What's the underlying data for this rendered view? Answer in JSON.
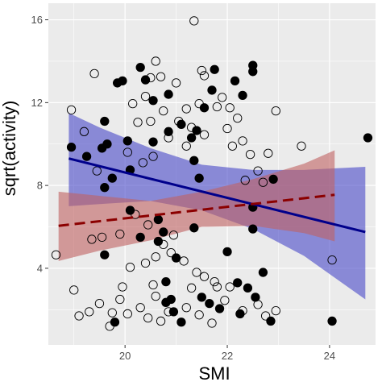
{
  "chart_data": {
    "type": "scatter",
    "xlabel": "SMI",
    "ylabel": "sqrt(activity)",
    "xlim": [
      18.5,
      24.9
    ],
    "ylim": [
      0.3,
      16.8
    ],
    "x_ticks": [
      20,
      22,
      24
    ],
    "x_tick_labels": [
      "20",
      "22",
      "24"
    ],
    "y_ticks": [
      4,
      8,
      12,
      16
    ],
    "y_tick_labels": [
      "4",
      "8",
      "12",
      "16"
    ],
    "grid": true,
    "legend": "none",
    "panel_color": "#ebebeb",
    "series": [
      {
        "style": "filled-points",
        "color": "#000000",
        "points": [
          [
            18.95,
            9.85
          ],
          [
            19.25,
            9.4
          ],
          [
            19.55,
            9.8
          ],
          [
            19.6,
            11.1
          ],
          [
            19.65,
            10
          ],
          [
            19.85,
            12.95
          ],
          [
            19.95,
            13.05
          ],
          [
            20.05,
            10.15
          ],
          [
            20.1,
            8.75
          ],
          [
            20.3,
            13.7
          ],
          [
            20.4,
            13.1
          ],
          [
            20.55,
            12.1
          ],
          [
            20.55,
            10.1
          ],
          [
            20.85,
            10.6
          ],
          [
            20.85,
            12.4
          ],
          [
            21.1,
            10.95
          ],
          [
            21.4,
            10.65
          ],
          [
            21.55,
            11.75
          ],
          [
            21.3,
            10.3
          ],
          [
            21.35,
            9.2
          ],
          [
            21.45,
            8.35
          ],
          [
            21.7,
            12.6
          ],
          [
            21.75,
            13.6
          ],
          [
            22.15,
            13.05
          ],
          [
            22.3,
            12.35
          ],
          [
            22.5,
            13.5
          ],
          [
            22.5,
            13.8
          ],
          [
            22.9,
            8.3
          ],
          [
            22.5,
            5.9
          ],
          [
            22.5,
            6.95
          ],
          [
            22.7,
            3.8
          ],
          [
            19.75,
            8.35
          ],
          [
            19.6,
            7.9
          ],
          [
            19.6,
            4.65
          ],
          [
            20.3,
            5.5
          ],
          [
            20.1,
            6.8
          ],
          [
            20.65,
            6.35
          ],
          [
            20.65,
            5.3
          ],
          [
            20.8,
            3.35
          ],
          [
            20.75,
            5.75
          ],
          [
            21.0,
            4.5
          ],
          [
            21.5,
            2.6
          ],
          [
            21.65,
            2.3
          ],
          [
            21.85,
            2.05
          ],
          [
            22.0,
            4.8
          ],
          [
            22.55,
            2.6
          ],
          [
            22.85,
            1.45
          ],
          [
            22.25,
            1.8
          ],
          [
            21.1,
            1.4
          ],
          [
            20.95,
            1.9
          ],
          [
            20.8,
            2.35
          ],
          [
            19.8,
            1.4
          ],
          [
            24.05,
            1.45
          ],
          [
            24.75,
            10.3
          ],
          [
            22.2,
            3.3
          ],
          [
            21.35,
            5.95
          ],
          [
            20.9,
            2.5
          ],
          [
            22.4,
            3.05
          ]
        ]
      },
      {
        "style": "open-points",
        "color": "#000000",
        "points": [
          [
            18.65,
            4.65
          ],
          [
            18.95,
            11.65
          ],
          [
            19.0,
            2.95
          ],
          [
            19.2,
            10.6
          ],
          [
            19.35,
            5.4
          ],
          [
            19.45,
            8.7
          ],
          [
            19.55,
            5.5
          ],
          [
            19.75,
            1.85
          ],
          [
            19.9,
            5.65
          ],
          [
            19.95,
            3.1
          ],
          [
            20.05,
            9.6
          ],
          [
            20.15,
            11.95
          ],
          [
            20.25,
            11.05
          ],
          [
            20.35,
            9.1
          ],
          [
            20.4,
            12.3
          ],
          [
            20.5,
            11.1
          ],
          [
            20.55,
            9.4
          ],
          [
            20.7,
            13.25
          ],
          [
            20.75,
            11.6
          ],
          [
            20.85,
            10.3
          ],
          [
            21.0,
            12.95
          ],
          [
            21.05,
            11.1
          ],
          [
            21.2,
            9.9
          ],
          [
            21.2,
            11.7
          ],
          [
            21.3,
            10.8
          ],
          [
            21.45,
            11.95
          ],
          [
            21.55,
            10.45
          ],
          [
            21.8,
            11.8
          ],
          [
            21.9,
            12.25
          ],
          [
            22.0,
            10.75
          ],
          [
            22.05,
            11.75
          ],
          [
            22.1,
            9.9
          ],
          [
            22.2,
            11.25
          ],
          [
            22.3,
            10.15
          ],
          [
            22.35,
            8.25
          ],
          [
            22.45,
            9.5
          ],
          [
            22.6,
            8.7
          ],
          [
            22.7,
            8.15
          ],
          [
            22.8,
            9.55
          ],
          [
            22.95,
            11.6
          ],
          [
            21.35,
            15.95
          ],
          [
            21.5,
            13.55
          ],
          [
            21.55,
            13.3
          ],
          [
            20.5,
            13.2
          ],
          [
            19.4,
            13.4
          ],
          [
            20.6,
            14.0
          ],
          [
            23.45,
            9.9
          ],
          [
            24.05,
            4.4
          ],
          [
            19.1,
            1.7
          ],
          [
            19.3,
            1.9
          ],
          [
            19.5,
            2.3
          ],
          [
            19.7,
            1.2
          ],
          [
            20.05,
            1.8
          ],
          [
            20.3,
            2.1
          ],
          [
            20.45,
            1.6
          ],
          [
            20.6,
            2.65
          ],
          [
            20.7,
            1.45
          ],
          [
            20.85,
            1.9
          ],
          [
            21.2,
            2.1
          ],
          [
            21.45,
            1.75
          ],
          [
            21.7,
            1.35
          ],
          [
            21.95,
            2.45
          ],
          [
            22.3,
            1.95
          ],
          [
            22.6,
            2.25
          ],
          [
            22.75,
            1.7
          ],
          [
            22.95,
            1.95
          ],
          [
            20.4,
            4.25
          ],
          [
            20.6,
            4.55
          ],
          [
            20.9,
            4.75
          ],
          [
            21.15,
            4.35
          ],
          [
            21.4,
            3.8
          ],
          [
            21.55,
            3.6
          ],
          [
            21.75,
            3.35
          ],
          [
            22.05,
            3.1
          ],
          [
            20.45,
            6.1
          ],
          [
            20.75,
            5.15
          ],
          [
            20.2,
            6.6
          ],
          [
            20.95,
            5.6
          ],
          [
            20.1,
            4.05
          ],
          [
            21.3,
            3.05
          ],
          [
            21.8,
            3.1
          ],
          [
            20.55,
            3.2
          ],
          [
            19.9,
            2.5
          ]
        ]
      },
      {
        "style": "solid-line",
        "color": "#00008b",
        "line": [
          [
            18.9,
            9.3
          ],
          [
            24.7,
            5.75
          ]
        ],
        "band_color": "#4747c8",
        "band": {
          "x": [
            18.9,
            19.5,
            20.5,
            21.5,
            22.5,
            23.5,
            24.7
          ],
          "lower": [
            7.0,
            7.1,
            7.25,
            6.8,
            5.9,
            4.6,
            2.5
          ],
          "upper": [
            11.5,
            10.8,
            9.8,
            9.0,
            8.75,
            8.75,
            8.9
          ]
        }
      },
      {
        "style": "dashed-line",
        "color": "#8b0000",
        "line": [
          [
            18.7,
            6.05
          ],
          [
            24.1,
            7.55
          ]
        ],
        "band_color": "#c06060",
        "band": {
          "x": [
            18.7,
            19.5,
            20.5,
            21.5,
            22.5,
            23.5,
            24.1
          ],
          "lower": [
            4.35,
            4.85,
            5.35,
            6.0,
            6.05,
            5.7,
            5.3
          ],
          "upper": [
            7.7,
            7.5,
            7.25,
            7.7,
            8.3,
            9.05,
            9.7
          ]
        }
      }
    ]
  }
}
